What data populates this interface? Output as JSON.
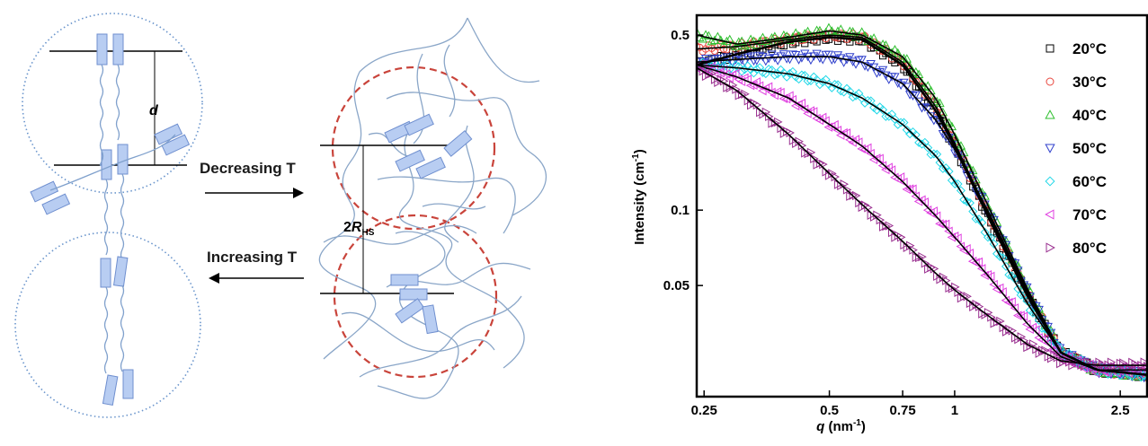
{
  "diagram": {
    "arrow_top_label": "Decreasing T",
    "arrow_bottom_label": "Increasing T",
    "spacing_label": "d",
    "radius_label_prefix": "2",
    "radius_label_symbol": "R",
    "radius_label_sub": "HS"
  },
  "chart_data": {
    "type": "scatter",
    "xlabel_symbol": "q",
    "xlabel_unit": "(nm",
    "xlabel_exp": "-1",
    "xlabel_close": ")",
    "ylabel": "Intensity (cm",
    "ylabel_exp": "-1",
    "ylabel_close": ")",
    "xscale": "log",
    "yscale": "log",
    "xlim": [
      0.24,
      2.9
    ],
    "ylim": [
      0.018,
      0.6
    ],
    "x_ticks": [
      {
        "value": 0.25,
        "label": "0.25"
      },
      {
        "value": 0.5,
        "label": "0.5"
      },
      {
        "value": 0.75,
        "label": "0.75"
      },
      {
        "value": 1,
        "label": "1"
      },
      {
        "value": 2.5,
        "label": "2.5"
      }
    ],
    "y_ticks": [
      {
        "value": 0.5,
        "label": "0.5"
      },
      {
        "value": 0.1,
        "label": "0.1"
      },
      {
        "value": 0.05,
        "label": "0.05"
      }
    ],
    "legend_position": "top-right",
    "series": [
      {
        "name": "20°C",
        "marker": "square",
        "color": "#000000",
        "x": [
          0.24,
          0.3,
          0.4,
          0.5,
          0.6,
          0.75,
          0.9,
          1.0,
          1.2,
          1.5,
          1.8,
          2.2,
          2.9
        ],
        "y": [
          0.38,
          0.42,
          0.47,
          0.49,
          0.48,
          0.38,
          0.25,
          0.18,
          0.095,
          0.045,
          0.027,
          0.023,
          0.022
        ]
      },
      {
        "name": "30°C",
        "marker": "circle",
        "color": "#e8453c",
        "x": [
          0.24,
          0.3,
          0.4,
          0.5,
          0.6,
          0.75,
          0.9,
          1.0,
          1.2,
          1.5,
          1.8,
          2.2,
          2.9
        ],
        "y": [
          0.44,
          0.45,
          0.48,
          0.5,
          0.49,
          0.39,
          0.26,
          0.185,
          0.098,
          0.046,
          0.027,
          0.023,
          0.022
        ]
      },
      {
        "name": "40°C",
        "marker": "triangle-up",
        "color": "#2fbf2f",
        "x": [
          0.24,
          0.3,
          0.4,
          0.5,
          0.6,
          0.75,
          0.9,
          1.0,
          1.2,
          1.5,
          1.8,
          2.2,
          2.9
        ],
        "y": [
          0.5,
          0.46,
          0.49,
          0.52,
          0.5,
          0.41,
          0.28,
          0.2,
          0.105,
          0.048,
          0.027,
          0.023,
          0.022
        ]
      },
      {
        "name": "50°C",
        "marker": "triangle-down",
        "color": "#3040cc",
        "x": [
          0.24,
          0.3,
          0.4,
          0.5,
          0.6,
          0.75,
          0.9,
          1.0,
          1.2,
          1.5,
          1.8,
          2.2,
          2.9
        ],
        "y": [
          0.39,
          0.4,
          0.41,
          0.41,
          0.39,
          0.32,
          0.23,
          0.175,
          0.1,
          0.047,
          0.027,
          0.023,
          0.022
        ]
      },
      {
        "name": "60°C",
        "marker": "diamond",
        "color": "#22d8e8",
        "x": [
          0.24,
          0.3,
          0.4,
          0.5,
          0.6,
          0.75,
          0.9,
          1.0,
          1.2,
          1.5,
          1.8,
          2.2,
          2.9
        ],
        "y": [
          0.38,
          0.37,
          0.35,
          0.32,
          0.28,
          0.22,
          0.165,
          0.13,
          0.08,
          0.042,
          0.027,
          0.023,
          0.022
        ]
      },
      {
        "name": "70°C",
        "marker": "triangle-left",
        "color": "#e040e0",
        "x": [
          0.24,
          0.3,
          0.4,
          0.5,
          0.6,
          0.75,
          0.9,
          1.0,
          1.2,
          1.5,
          1.8,
          2.2,
          2.9
        ],
        "y": [
          0.38,
          0.34,
          0.28,
          0.22,
          0.18,
          0.13,
          0.095,
          0.078,
          0.055,
          0.035,
          0.026,
          0.023,
          0.023
        ]
      },
      {
        "name": "80°C",
        "marker": "triangle-right",
        "color": "#9a3090",
        "x": [
          0.24,
          0.3,
          0.4,
          0.5,
          0.6,
          0.75,
          0.9,
          1.0,
          1.2,
          1.5,
          1.8,
          2.2,
          2.9
        ],
        "y": [
          0.37,
          0.3,
          0.2,
          0.14,
          0.105,
          0.075,
          0.056,
          0.048,
          0.038,
          0.029,
          0.025,
          0.024,
          0.024
        ]
      }
    ]
  }
}
